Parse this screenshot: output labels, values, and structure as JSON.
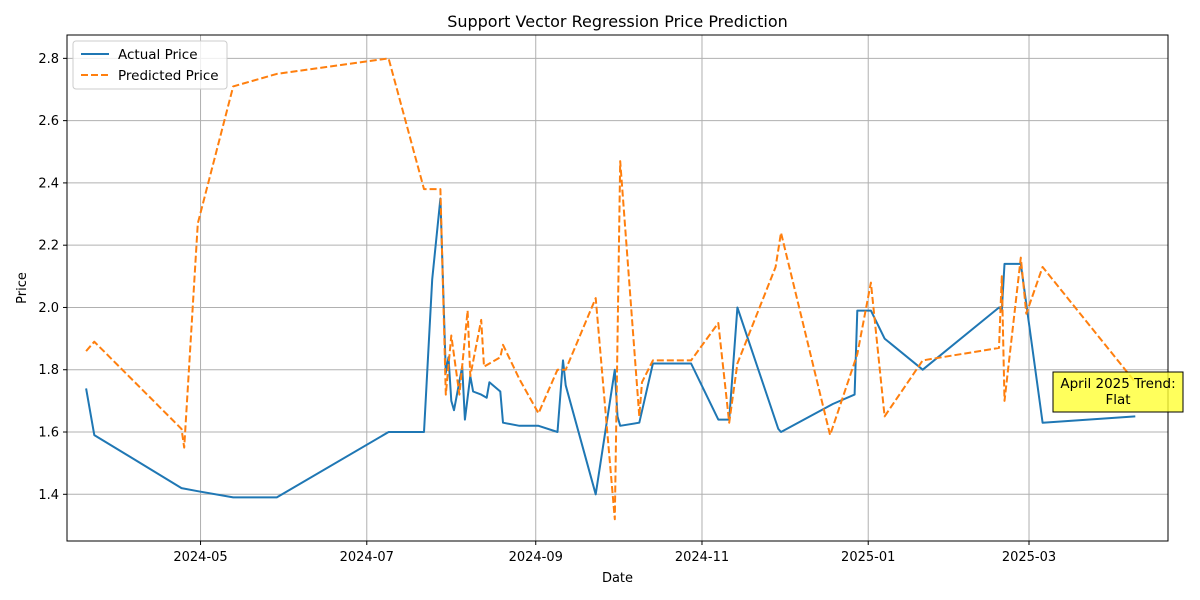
{
  "chart_data": {
    "type": "line",
    "title": "Support Vector Regression Price Prediction",
    "xlabel": "Date",
    "ylabel": "Price",
    "ylim": [
      1.25,
      2.875
    ],
    "xlim": [
      "2024-03-13",
      "2025-04-21"
    ],
    "x_ticks": [
      "2024-05-01",
      "2024-07-01",
      "2024-09-01",
      "2024-11-01",
      "2025-01-01",
      "2025-03-01"
    ],
    "x_tick_labels": [
      "2024-05",
      "2024-07",
      "2024-09",
      "2024-11",
      "2025-01",
      "2025-03"
    ],
    "y_ticks": [
      1.4,
      1.6,
      1.8,
      2.0,
      2.2,
      2.4,
      2.6,
      2.8
    ],
    "y_tick_labels": [
      "1.4",
      "1.6",
      "1.8",
      "2.0",
      "2.2",
      "2.4",
      "2.6",
      "2.8"
    ],
    "grid": true,
    "legend_position": "upper-left",
    "series": [
      {
        "name": "Actual Price",
        "color": "#1f77b4",
        "style": "solid",
        "points": [
          [
            "2024-03-20",
            1.74
          ],
          [
            "2024-03-23",
            1.59
          ],
          [
            "2024-04-24",
            1.42
          ],
          [
            "2024-04-30",
            1.41
          ],
          [
            "2024-05-13",
            1.39
          ],
          [
            "2024-05-29",
            1.39
          ],
          [
            "2024-07-09",
            1.6
          ],
          [
            "2024-07-22",
            1.6
          ],
          [
            "2024-07-25",
            2.09
          ],
          [
            "2024-07-28",
            2.35
          ],
          [
            "2024-07-30",
            1.79
          ],
          [
            "2024-07-31",
            1.84
          ],
          [
            "2024-08-01",
            1.7
          ],
          [
            "2024-08-02",
            1.67
          ],
          [
            "2024-08-05",
            1.81
          ],
          [
            "2024-08-06",
            1.64
          ],
          [
            "2024-08-08",
            1.78
          ],
          [
            "2024-08-09",
            1.73
          ],
          [
            "2024-08-12",
            1.72
          ],
          [
            "2024-08-14",
            1.71
          ],
          [
            "2024-08-15",
            1.76
          ],
          [
            "2024-08-19",
            1.73
          ],
          [
            "2024-08-20",
            1.63
          ],
          [
            "2024-08-26",
            1.62
          ],
          [
            "2024-09-02",
            1.62
          ],
          [
            "2024-09-09",
            1.6
          ],
          [
            "2024-09-11",
            1.83
          ],
          [
            "2024-09-12",
            1.75
          ],
          [
            "2024-09-23",
            1.4
          ],
          [
            "2024-09-30",
            1.8
          ],
          [
            "2024-10-01",
            1.65
          ],
          [
            "2024-10-02",
            1.62
          ],
          [
            "2024-10-09",
            1.63
          ],
          [
            "2024-10-14",
            1.82
          ],
          [
            "2024-10-28",
            1.82
          ],
          [
            "2024-11-07",
            1.64
          ],
          [
            "2024-11-11",
            1.64
          ],
          [
            "2024-11-14",
            2.0
          ],
          [
            "2024-11-29",
            1.61
          ],
          [
            "2024-11-30",
            1.6
          ],
          [
            "2024-12-19",
            1.69
          ],
          [
            "2024-12-27",
            1.72
          ],
          [
            "2024-12-28",
            1.99
          ],
          [
            "2025-01-02",
            1.99
          ],
          [
            "2025-01-07",
            1.9
          ],
          [
            "2025-01-21",
            1.8
          ],
          [
            "2025-02-18",
            2.0
          ],
          [
            "2025-02-19",
            1.99
          ],
          [
            "2025-02-20",
            2.14
          ],
          [
            "2025-02-26",
            2.14
          ],
          [
            "2025-03-06",
            1.63
          ],
          [
            "2025-04-09",
            1.65
          ]
        ]
      },
      {
        "name": "Predicted Price",
        "color": "#ff7f0e",
        "style": "dashed",
        "points": [
          [
            "2024-03-20",
            1.86
          ],
          [
            "2024-03-23",
            1.89
          ],
          [
            "2024-04-24",
            1.61
          ],
          [
            "2024-04-25",
            1.55
          ],
          [
            "2024-04-30",
            2.27
          ],
          [
            "2024-05-13",
            2.71
          ],
          [
            "2024-05-29",
            2.75
          ],
          [
            "2024-07-09",
            2.8
          ],
          [
            "2024-07-22",
            2.38
          ],
          [
            "2024-07-28",
            2.38
          ],
          [
            "2024-07-30",
            1.72
          ],
          [
            "2024-08-01",
            1.91
          ],
          [
            "2024-08-04",
            1.72
          ],
          [
            "2024-08-07",
            1.99
          ],
          [
            "2024-08-08",
            1.78
          ],
          [
            "2024-08-12",
            1.96
          ],
          [
            "2024-08-13",
            1.81
          ],
          [
            "2024-08-19",
            1.84
          ],
          [
            "2024-08-20",
            1.88
          ],
          [
            "2024-08-26",
            1.77
          ],
          [
            "2024-09-02",
            1.66
          ],
          [
            "2024-09-09",
            1.8
          ],
          [
            "2024-09-12",
            1.8
          ],
          [
            "2024-09-23",
            2.03
          ],
          [
            "2024-09-30",
            1.32
          ],
          [
            "2024-10-02",
            2.47
          ],
          [
            "2024-10-09",
            1.65
          ],
          [
            "2024-10-10",
            1.76
          ],
          [
            "2024-10-14",
            1.83
          ],
          [
            "2024-10-28",
            1.83
          ],
          [
            "2024-11-07",
            1.95
          ],
          [
            "2024-11-11",
            1.63
          ],
          [
            "2024-11-14",
            1.82
          ],
          [
            "2024-11-28",
            2.13
          ],
          [
            "2024-11-30",
            2.24
          ],
          [
            "2024-12-18",
            1.59
          ],
          [
            "2024-12-28",
            1.85
          ],
          [
            "2025-01-02",
            2.08
          ],
          [
            "2025-01-07",
            1.65
          ],
          [
            "2025-01-21",
            1.83
          ],
          [
            "2025-02-18",
            1.87
          ],
          [
            "2025-02-19",
            2.1
          ],
          [
            "2025-02-20",
            1.7
          ],
          [
            "2025-02-26",
            2.16
          ],
          [
            "2025-02-28",
            1.98
          ],
          [
            "2025-03-06",
            2.13
          ],
          [
            "2025-04-09",
            1.76
          ]
        ]
      }
    ],
    "annotation": {
      "text_line1": "April 2025 Trend:",
      "text_line2": "Flat",
      "background": "#ffff33"
    }
  }
}
